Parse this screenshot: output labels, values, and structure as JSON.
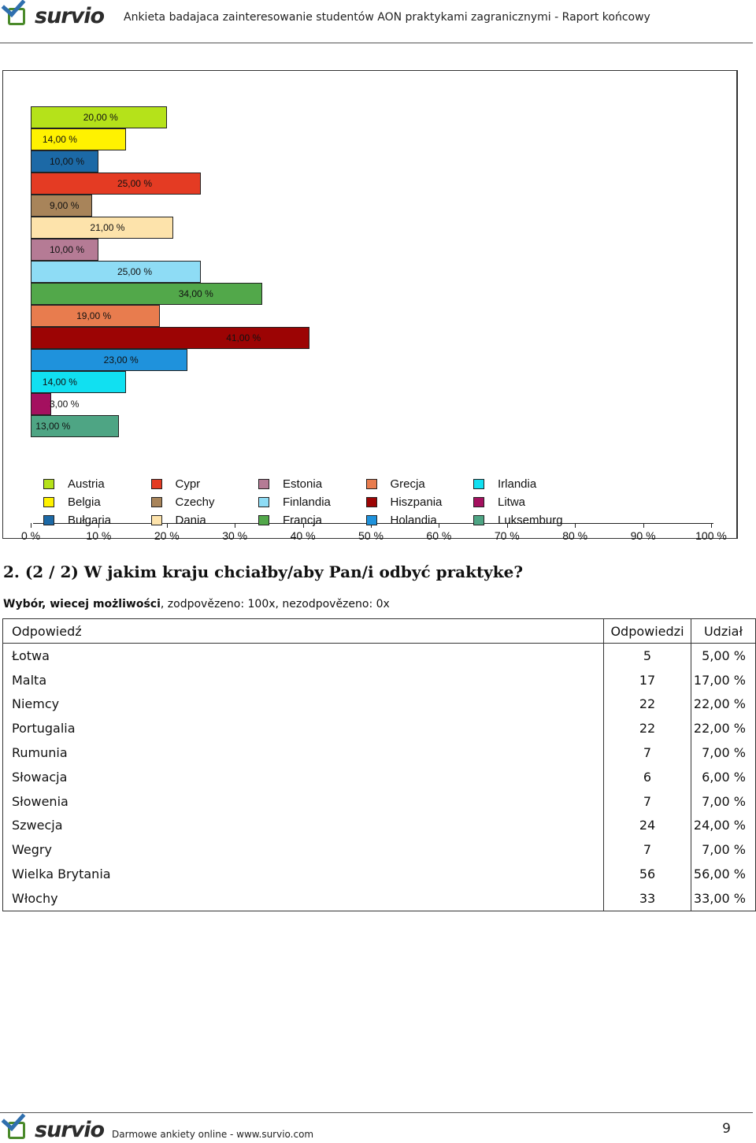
{
  "header": {
    "brand": "survio",
    "title": "Ankieta badajaca zainteresowanie studentów AON praktykami zagranicznymi - Raport końcowy"
  },
  "chart_data": {
    "type": "bar",
    "orientation": "horizontal",
    "xlim": [
      0,
      100
    ],
    "tick_labels": [
      "0 %",
      "10 %",
      "20 %",
      "30 %",
      "40 %",
      "50 %",
      "60 %",
      "70 %",
      "80 %",
      "90 %",
      "100 %"
    ],
    "bars": [
      {
        "category": "Austria",
        "value": 20,
        "label": "20,00 %",
        "color": "#b5e21a"
      },
      {
        "category": "Belgia",
        "value": 14,
        "label": "14,00 %",
        "color": "#fff200"
      },
      {
        "category": "Bułgaria",
        "value": 10,
        "label": "10,00 %",
        "color": "#1c69a6"
      },
      {
        "category": "Cypr",
        "value": 25,
        "label": "25,00 %",
        "color": "#e43b23"
      },
      {
        "category": "Czechy",
        "value": 9,
        "label": "9,00 %",
        "color": "#a8845a"
      },
      {
        "category": "Dania",
        "value": 21,
        "label": "21,00 %",
        "color": "#fde3ab"
      },
      {
        "category": "Estonia",
        "value": 10,
        "label": "10,00 %",
        "color": "#b57b95"
      },
      {
        "category": "Finlandia",
        "value": 25,
        "label": "25,00 %",
        "color": "#8edcf5"
      },
      {
        "category": "Francja",
        "value": 34,
        "label": "34,00 %",
        "color": "#52a84a"
      },
      {
        "category": "Grecja",
        "value": 19,
        "label": "19,00 %",
        "color": "#e87c4e"
      },
      {
        "category": "Hiszpania",
        "value": 41,
        "label": "41,00 %",
        "color": "#9c0404"
      },
      {
        "category": "Holandia",
        "value": 23,
        "label": "23,00 %",
        "color": "#1f92dc"
      },
      {
        "category": "Irlandia",
        "value": 14,
        "label": "14,00 %",
        "color": "#11e0f1"
      },
      {
        "category": "Litwa",
        "value": 3,
        "label": "3,00 %",
        "color": "#a4105f"
      },
      {
        "category": "Luksemburg",
        "value": 13,
        "label": "13,00 %",
        "color": "#4ea584"
      }
    ],
    "legend": [
      "Austria",
      "Cypr",
      "Estonia",
      "Grecja",
      "Irlandia",
      "Belgia",
      "Czechy",
      "Finlandia",
      "Hiszpania",
      "Litwa",
      "Bułgaria",
      "Dania",
      "Francja",
      "Holandia",
      "Luksemburg"
    ],
    "legend_placement": "bottom"
  },
  "question": {
    "title": "2. (2 / 2) W jakim kraju chciałby/aby Pan/i odbyć praktyke?",
    "type_label": "Wybór, wiecej możliwości",
    "stats": ", zodpovězeno: 100x, nezodpovězeno: 0x"
  },
  "table": {
    "headers": [
      "Odpowiedź",
      "Odpowiedzi",
      "Udział"
    ],
    "rows": [
      {
        "answer": "Łotwa",
        "count": "5",
        "share": "5,00 %"
      },
      {
        "answer": "Malta",
        "count": "17",
        "share": "17,00 %"
      },
      {
        "answer": "Niemcy",
        "count": "22",
        "share": "22,00 %"
      },
      {
        "answer": "Portugalia",
        "count": "22",
        "share": "22,00 %"
      },
      {
        "answer": "Rumunia",
        "count": "7",
        "share": "7,00 %"
      },
      {
        "answer": "Słowacja",
        "count": "6",
        "share": "6,00 %"
      },
      {
        "answer": "Słowenia",
        "count": "7",
        "share": "7,00 %"
      },
      {
        "answer": "Szwecja",
        "count": "24",
        "share": "24,00 %"
      },
      {
        "answer": "Wegry",
        "count": "7",
        "share": "7,00 %"
      },
      {
        "answer": "Wielka Brytania",
        "count": "56",
        "share": "56,00 %"
      },
      {
        "answer": "Włochy",
        "count": "33",
        "share": "33,00 %"
      }
    ]
  },
  "footer": {
    "brand": "survio",
    "text": "Darmowe ankiety online - www.survio.com",
    "page_number": "9"
  }
}
